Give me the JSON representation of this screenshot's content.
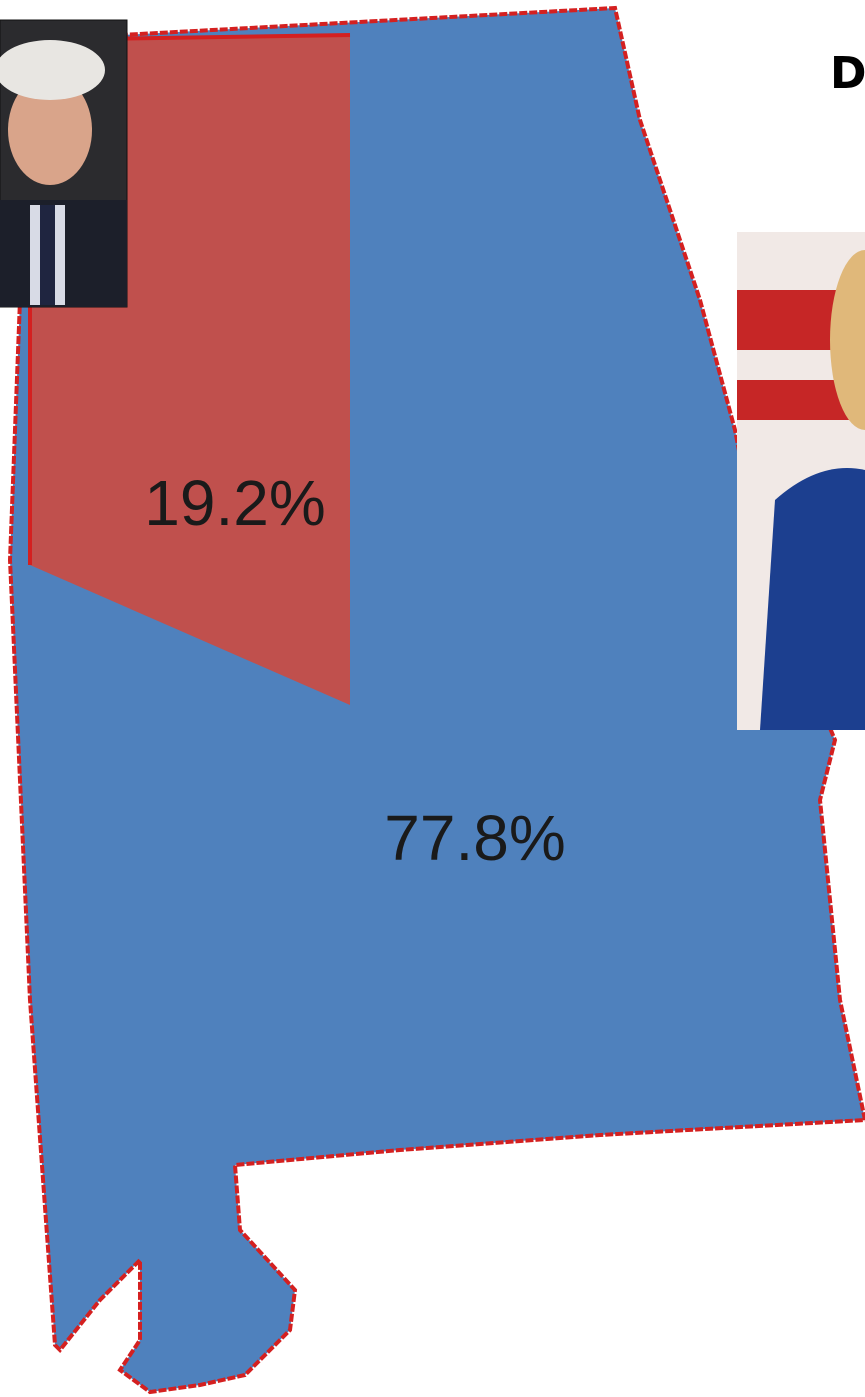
{
  "title": "D",
  "regions": [
    {
      "label": "19.2%"
    },
    {
      "label": "77.8%"
    }
  ]
}
